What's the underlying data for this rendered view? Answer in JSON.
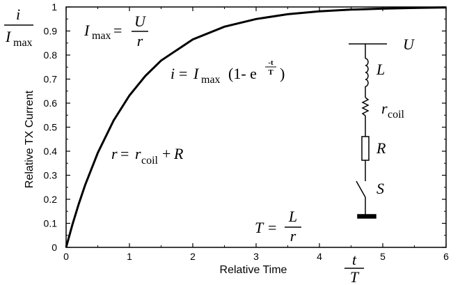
{
  "chart_data": {
    "type": "line",
    "xlabel": "Relative Time",
    "ylabel": "Relative TX Current",
    "xlim": [
      0,
      6
    ],
    "ylim": [
      0,
      1
    ],
    "x_ticks": [
      "0",
      "1",
      "2",
      "3",
      "4",
      "5",
      "6"
    ],
    "y_ticks": [
      "0",
      "0.1",
      "0.2",
      "0.3",
      "0.4",
      "0.5",
      "0.6",
      "0.7",
      "0.8",
      "0.9",
      "1"
    ],
    "grid": false,
    "series": [
      {
        "x": [
          0,
          0.1,
          0.2,
          0.3,
          0.5,
          0.75,
          1,
          1.25,
          1.5,
          2,
          2.5,
          3,
          3.5,
          4,
          4.5,
          5,
          5.5,
          6
        ],
        "y": [
          0,
          0.095,
          0.181,
          0.259,
          0.393,
          0.528,
          0.632,
          0.713,
          0.777,
          0.865,
          0.918,
          0.95,
          0.97,
          0.982,
          0.989,
          0.993,
          0.996,
          0.998
        ]
      }
    ],
    "annotations": {
      "y_axis_fraction_num": "i",
      "y_axis_fraction_den": "I",
      "y_axis_fraction_den_sub": "max",
      "x_axis_fraction_num": "t",
      "x_axis_fraction_den": "T",
      "imax_lhs": "I",
      "imax_sub": "max",
      "imax_eq": "=",
      "imax_num": "U",
      "imax_den": "r",
      "curve_lhs": "i",
      "curve_eq": "=",
      "curve_I": "I",
      "curve_sub": "max",
      "curve_paren_open": "(1- e",
      "curve_exp_num": "-t",
      "curve_exp_den": "T",
      "curve_paren_close": ")",
      "r_lhs": "r",
      "r_eq": "=",
      "r_term": "r",
      "r_term_sub": "coil",
      "r_plus": "+",
      "r_R": "R",
      "T_lhs": "T",
      "T_eq": "=",
      "T_num": "L",
      "T_den": "r"
    },
    "circuit_labels": {
      "U": "U",
      "L": "L",
      "r": "r",
      "r_sub": "coil",
      "R": "R",
      "S": "S"
    }
  }
}
